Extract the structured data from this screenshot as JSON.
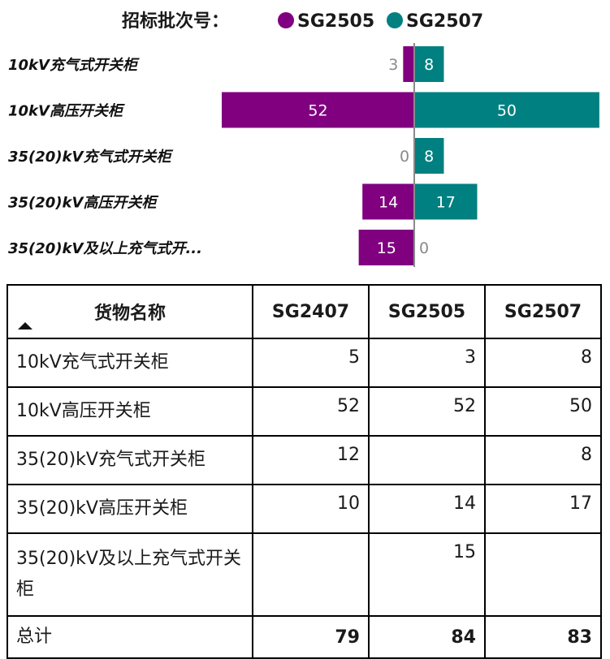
{
  "legend": {
    "title": "招标批次号：",
    "items": [
      {
        "name": "SG2505",
        "color": "#800080"
      },
      {
        "name": "SG2507",
        "color": "#008080"
      }
    ]
  },
  "chart_data": {
    "type": "bar",
    "orientation": "horizontal-diverging",
    "categories": [
      "10kV充气式开关柜",
      "10kV高压开关柜",
      "35(20)kV充气式开关柜",
      "35(20)kV高压开关柜",
      "35(20)kV及以上充气式开..."
    ],
    "series": [
      {
        "name": "SG2505",
        "values": [
          3,
          52,
          0,
          14,
          15
        ],
        "color": "#800080",
        "side": "left"
      },
      {
        "name": "SG2507",
        "values": [
          8,
          50,
          8,
          17,
          0
        ],
        "color": "#008080",
        "side": "right"
      }
    ],
    "xlim": [
      -52,
      52
    ],
    "legend_position": "top"
  },
  "table": {
    "headers": [
      "货物名称",
      "SG2407",
      "SG2505",
      "SG2507"
    ],
    "sort_icon": "sort-ascending-icon",
    "rows": [
      {
        "name": "10kV充气式开关柜",
        "values": [
          "5",
          "3",
          "8"
        ]
      },
      {
        "name": "10kV高压开关柜",
        "values": [
          "52",
          "52",
          "50"
        ]
      },
      {
        "name": "35(20)kV充气式开关柜",
        "values": [
          "12",
          "",
          "8"
        ]
      },
      {
        "name": "35(20)kV高压开关柜",
        "values": [
          "10",
          "14",
          "17"
        ]
      },
      {
        "name": "35(20)kV及以上充气式开关柜",
        "values": [
          "",
          "15",
          ""
        ]
      }
    ],
    "total": {
      "name": "总计",
      "values": [
        "79",
        "84",
        "83"
      ]
    }
  }
}
